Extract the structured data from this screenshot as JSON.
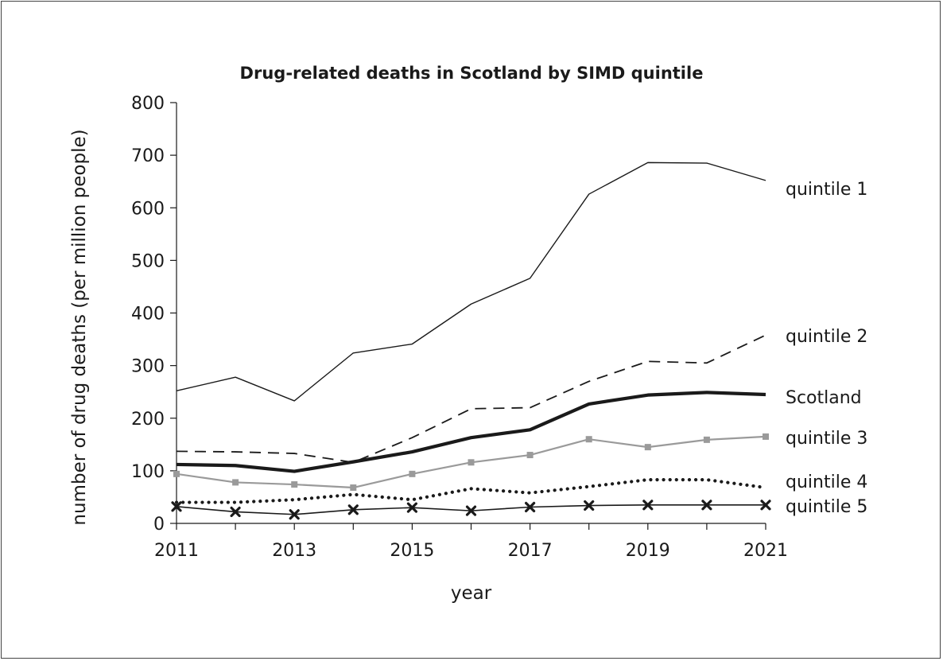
{
  "chart_data": {
    "type": "line",
    "title": "Drug-related deaths in Scotland by SIMD quintile",
    "xlabel": "year",
    "ylabel": "number of drug deaths (per million people)",
    "xlim": [
      2011,
      2021
    ],
    "ylim": [
      0,
      800
    ],
    "xticks": [
      "2011",
      "2013",
      "2015",
      "2017",
      "2019",
      "2021"
    ],
    "yticks": [
      "0",
      "100",
      "200",
      "300",
      "400",
      "500",
      "600",
      "700",
      "800"
    ],
    "grid": false,
    "legend": "inline labels at right end of each line",
    "x": [
      2011,
      2012,
      2013,
      2014,
      2015,
      2016,
      2017,
      2018,
      2019,
      2020,
      2021
    ],
    "series": [
      {
        "name": "quintile 1",
        "values": [
          252,
          278,
          233,
          324,
          341,
          417,
          466,
          626,
          686,
          685,
          652
        ],
        "color": "#1a1a1a",
        "style": "thin-solid"
      },
      {
        "name": "quintile 2",
        "values": [
          137,
          136,
          133,
          116,
          163,
          218,
          220,
          270,
          308,
          305,
          358
        ],
        "color": "#1a1a1a",
        "style": "dashed"
      },
      {
        "name": "Scotland",
        "values": [
          112,
          110,
          99,
          117,
          136,
          163,
          178,
          227,
          244,
          249,
          245
        ],
        "color": "#1a1a1a",
        "style": "thick-solid"
      },
      {
        "name": "quintile 3",
        "values": [
          94,
          78,
          74,
          68,
          94,
          116,
          130,
          160,
          145,
          159,
          165
        ],
        "color": "#9a9a9a",
        "style": "grey-square-markers"
      },
      {
        "name": "quintile 4",
        "values": [
          40,
          40,
          45,
          55,
          45,
          66,
          58,
          70,
          83,
          83,
          68
        ],
        "color": "#1a1a1a",
        "style": "dotted"
      },
      {
        "name": "quintile 5",
        "values": [
          32,
          22,
          17,
          26,
          30,
          24,
          31,
          34,
          35,
          35,
          35
        ],
        "color": "#1a1a1a",
        "style": "x-markers"
      }
    ]
  }
}
